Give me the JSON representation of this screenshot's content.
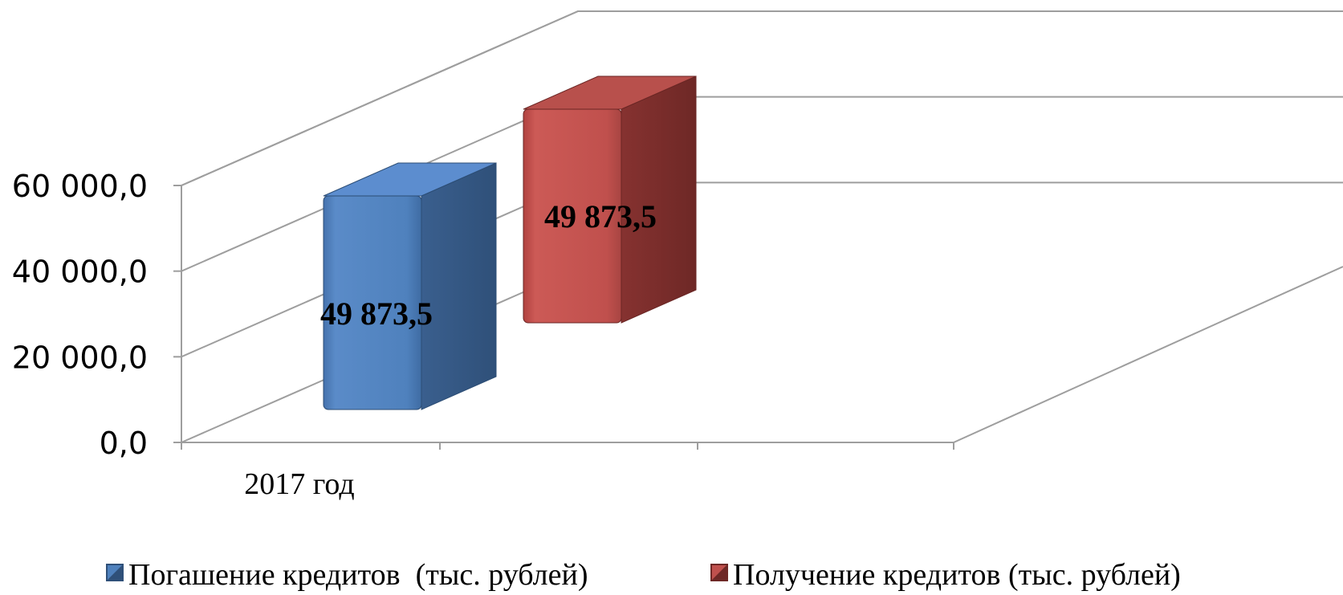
{
  "chart_data": {
    "type": "bar",
    "categories": [
      "2017 год"
    ],
    "series": [
      {
        "name": "Погашение кредитов  (тыс. рублей)",
        "values": [
          49873.5
        ],
        "color": "#4f81bd"
      },
      {
        "name": "Получение кредитов (тыс. рублей)",
        "values": [
          49873.5
        ],
        "color": "#c0504d"
      }
    ],
    "data_labels": [
      "49 873,5",
      "49 873,5"
    ],
    "y_ticks": [
      "0,0",
      "20 000,0",
      "40 000,0",
      "60 000,0"
    ],
    "ylim": [
      0,
      60000
    ],
    "grid": true,
    "three_d": true,
    "legend_position": "bottom",
    "title": "",
    "xlabel": "",
    "ylabel": ""
  }
}
